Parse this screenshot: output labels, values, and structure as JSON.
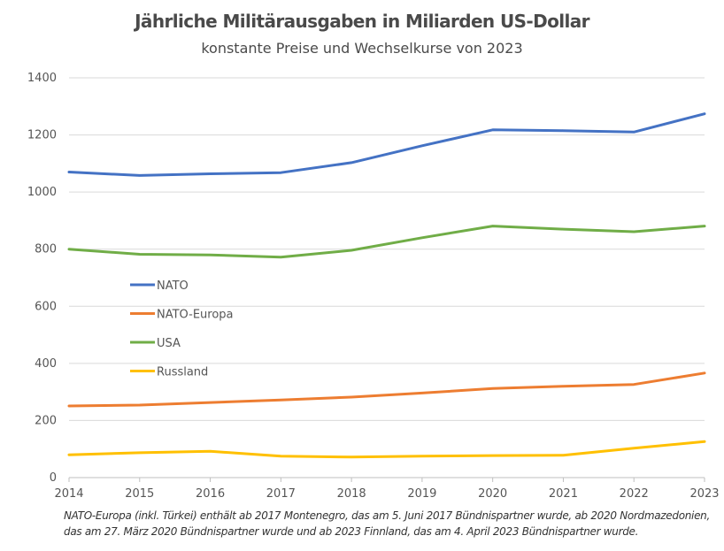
{
  "chart_data": {
    "type": "line",
    "title": "Jährliche Militärausgaben in Miliarden US-Dollar",
    "subtitle": "konstante Preise und Wechselkurse von 2023",
    "xlabel": "",
    "ylabel": "",
    "x": [
      "2014",
      "2015",
      "2016",
      "2017",
      "2018",
      "2019",
      "2020",
      "2021",
      "2022",
      "2023"
    ],
    "ylim": [
      0,
      1400
    ],
    "yticks": [
      "0",
      "200",
      "400",
      "600",
      "800",
      "1000",
      "1200",
      "1400"
    ],
    "grid": true,
    "legend_position": "center-left",
    "series": [
      {
        "name": "NATO",
        "color": "#4472c4",
        "values": [
          1070,
          1058,
          1064,
          1068,
          1103,
          1162,
          1218,
          1215,
          1210,
          1274
        ]
      },
      {
        "name": "NATO-Europa",
        "color": "#ed7d31",
        "values": [
          251,
          254,
          263,
          272,
          282,
          296,
          312,
          320,
          326,
          366
        ]
      },
      {
        "name": "USA",
        "color": "#70ad47",
        "values": [
          800,
          782,
          780,
          772,
          796,
          840,
          881,
          870,
          861,
          881
        ]
      },
      {
        "name": "Russland",
        "color": "#ffc000",
        "values": [
          80,
          87,
          92,
          75,
          72,
          75,
          77,
          78,
          103,
          126
        ]
      }
    ],
    "footnote_lines": [
      "NATO-Europa (inkl. Türkei) enthält ab 2017 Montenegro, das am 5. Juni 2017 Bündnispartner wurde, ab 2020 Nordmazedonien,",
      "das am 27. März 2020 Bündnispartner wurde und ab 2023 Finnland, das am 4. April 2023 Bündnispartner wurde."
    ]
  }
}
